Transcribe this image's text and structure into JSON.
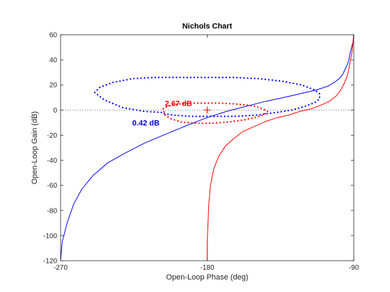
{
  "chart_data": {
    "type": "line",
    "title": "Nichols Chart",
    "xlabel": "Open-Loop Phase (deg)",
    "ylabel": "Open-Loop Gain (dB)",
    "xlim": [
      -270,
      -90
    ],
    "ylim": [
      -120,
      60
    ],
    "xticks": [
      -270,
      -180,
      -90
    ],
    "xtick_labels": [
      "-270",
      "-180",
      "-90"
    ],
    "yticks": [
      60,
      40,
      20,
      0,
      -20,
      -40,
      -60,
      -80,
      -100,
      -120
    ],
    "ytick_labels": [
      "60",
      "40",
      "20",
      "0",
      "-20",
      "-40",
      "-60",
      "-80",
      "-100",
      "-120"
    ],
    "grid": false,
    "zero_db_line": true,
    "critical_point": {
      "x": -180,
      "y": 0,
      "color": "#ff0000"
    },
    "series": [
      {
        "color": "#0000ff",
        "style": "solid",
        "x": [
          -270,
          -269,
          -266,
          -262,
          -257,
          -250,
          -241,
          -230,
          -218,
          -205,
          -192,
          -180,
          -168,
          -156,
          -144,
          -133,
          -123,
          -113,
          -106,
          -102,
          -99,
          -97,
          -95.5,
          -94,
          -93,
          -92.5,
          -91.5,
          -90.5,
          -90
        ],
        "y": [
          -120,
          -105,
          -90,
          -75,
          -63,
          -52,
          -42,
          -34,
          -26,
          -19,
          -12,
          -6,
          -1,
          3,
          7,
          10,
          13,
          16,
          19,
          22,
          25,
          28,
          32,
          36,
          40,
          44,
          49,
          54,
          60
        ]
      },
      {
        "color": "#ff0000",
        "style": "solid",
        "x": [
          -180,
          -180,
          -179.5,
          -179,
          -178,
          -176,
          -173,
          -169,
          -164,
          -158,
          -151,
          -144,
          -137,
          -130,
          -123,
          -116,
          -110,
          -105,
          -101,
          -98,
          -96,
          -94,
          -93,
          -92,
          -91,
          -90.5,
          -90
        ],
        "y": [
          -120,
          -105,
          -90,
          -75,
          -60,
          -47,
          -37,
          -29,
          -23,
          -17,
          -13,
          -9,
          -6,
          -4,
          -1,
          1,
          4,
          7,
          11,
          16,
          21,
          27,
          33,
          40,
          47,
          53,
          60
        ]
      },
      {
        "color": "#0000ff",
        "style": "dotted",
        "x": [
          -249,
          -246,
          -238,
          -226,
          -212,
          -197,
          -180,
          -163,
          -148,
          -134,
          -122,
          -114,
          -111,
          -111,
          -114,
          -120,
          -128,
          -138,
          -150,
          -163,
          -177,
          -190,
          -201,
          -206,
          -207,
          -219,
          -232,
          -243,
          -249
        ],
        "y": [
          14,
          18,
          22,
          25,
          26,
          26,
          26,
          26,
          25,
          23,
          20,
          16,
          13,
          9,
          6,
          3,
          0,
          -2,
          -4,
          -5,
          -5,
          -5,
          -4,
          -3,
          -2,
          -1,
          2,
          8,
          14
        ]
      },
      {
        "color": "#ff0000",
        "style": "dotted",
        "x": [
          -207,
          -206,
          -202,
          -196,
          -189,
          -181,
          -172,
          -164,
          -156,
          -150,
          -146,
          -143,
          -143,
          -146,
          -151,
          -158,
          -167,
          -177,
          -187,
          -196,
          -202,
          -206,
          -207
        ],
        "y": [
          1,
          2,
          4,
          5,
          5.5,
          5.5,
          5.5,
          5,
          4,
          3,
          1,
          -1,
          -2,
          -4,
          -6,
          -8,
          -9.5,
          -10.5,
          -10.5,
          -9.5,
          -7,
          -4,
          1
        ]
      }
    ],
    "annotations": [
      {
        "text": "2.67 dB",
        "x": -206,
        "y": 5.5,
        "color": "#ff0000"
      },
      {
        "text": "0.42 dB",
        "x": -226,
        "y": -10,
        "color": "#0000cc"
      }
    ]
  }
}
